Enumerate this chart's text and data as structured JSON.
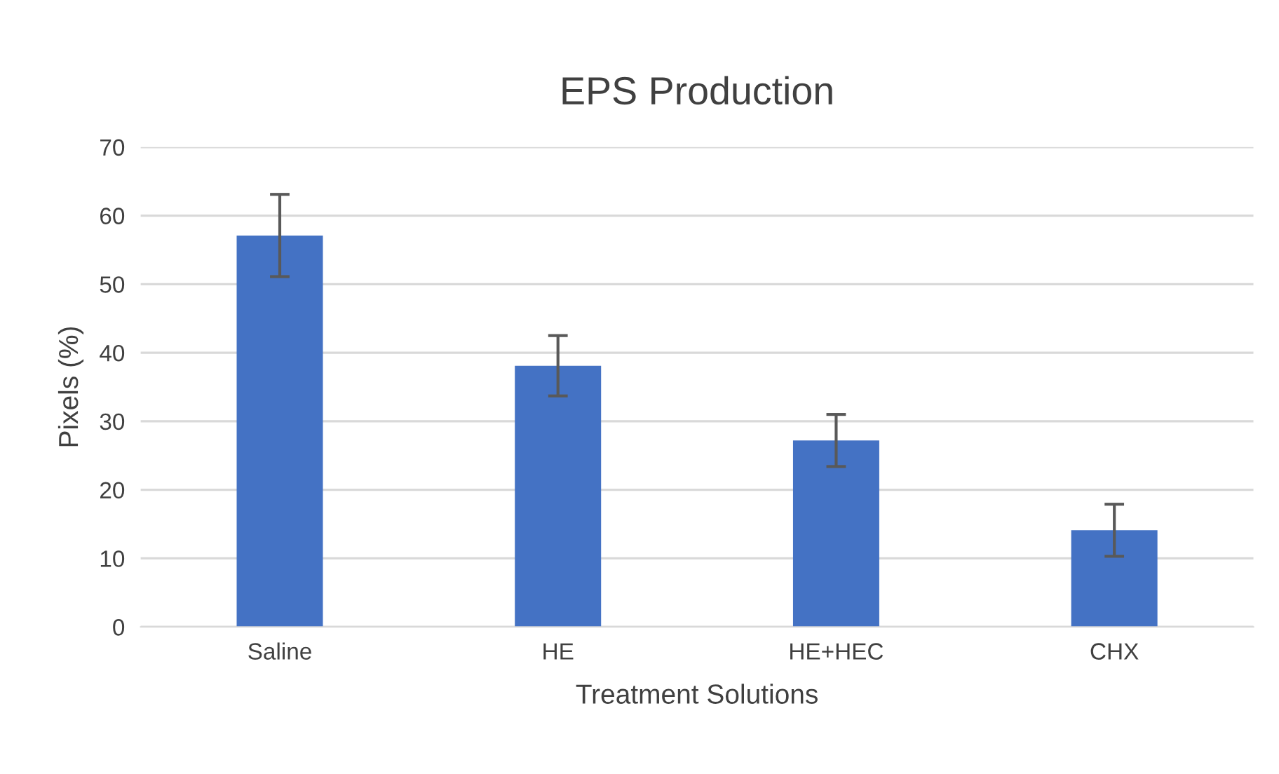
{
  "chart_data": {
    "type": "bar",
    "title": "EPS Production",
    "xlabel": "Treatment Solutions",
    "ylabel": "Pixels (%)",
    "categories": [
      "Saline",
      "HE",
      "HE+HEC",
      "CHX"
    ],
    "values": [
      57.1,
      38.1,
      27.2,
      14.1
    ],
    "errors": [
      6.0,
      4.4,
      3.8,
      3.8
    ],
    "color": "#4472c4",
    "ylim": [
      0,
      70
    ],
    "yticks": [
      0,
      10,
      20,
      30,
      40,
      50,
      60,
      70
    ],
    "grid": "y",
    "legend": false
  }
}
